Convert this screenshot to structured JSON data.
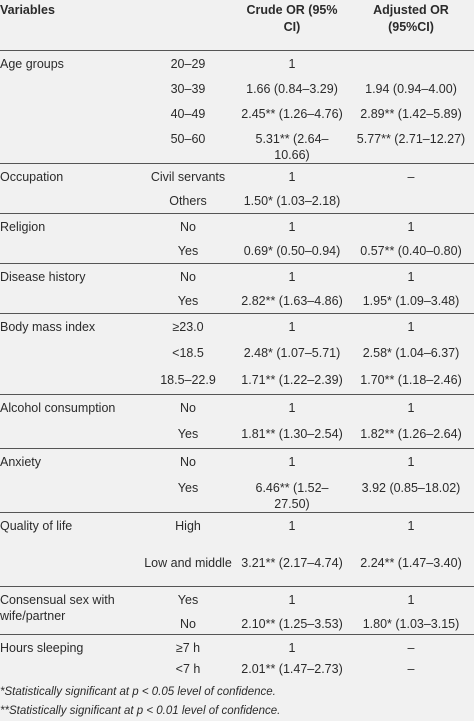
{
  "header": {
    "variables": "Variables",
    "crude": "Crude OR (95% CI)",
    "adjusted": "Adjusted OR (95%CI)"
  },
  "groups": [
    {
      "variable": "Age groups",
      "rows": [
        [
          "20–29",
          "1",
          ""
        ],
        [
          "30–39",
          "1.66 (0.84–3.29)",
          "1.94 (0.94–4.00)"
        ],
        [
          "40–49",
          "2.45** (1.26–4.76)",
          "2.89** (1.42–5.89)"
        ],
        [
          "50–60",
          "5.31** (2.64–10.66)",
          "5.77** (2.71–12.27)"
        ]
      ]
    },
    {
      "variable": "Occupation",
      "rows": [
        [
          "Civil servants",
          "1",
          "–"
        ],
        [
          "Others",
          "1.50* (1.03–2.18)",
          ""
        ]
      ]
    },
    {
      "variable": "Religion",
      "rows": [
        [
          "No",
          "1",
          "1"
        ],
        [
          "Yes",
          "0.69* (0.50–0.94)",
          "0.57** (0.40–0.80)"
        ]
      ]
    },
    {
      "variable": "Disease history",
      "rows": [
        [
          "No",
          "1",
          "1"
        ],
        [
          "Yes",
          "2.82** (1.63–4.86)",
          "1.95* (1.09–3.48)"
        ]
      ]
    },
    {
      "variable": "Body mass index",
      "rows": [
        [
          "≥23.0",
          "1",
          "1"
        ],
        [
          "<18.5",
          "2.48* (1.07–5.71)",
          "2.58* (1.04–6.37)"
        ],
        [
          "18.5–22.9",
          "1.71** (1.22–2.39)",
          "1.70** (1.18–2.46)"
        ]
      ]
    },
    {
      "variable": "Alcohol consumption",
      "rows": [
        [
          "No",
          "1",
          "1"
        ],
        [
          "Yes",
          "1.81** (1.30–2.54)",
          "1.82** (1.26–2.64)"
        ]
      ]
    },
    {
      "variable": "Anxiety",
      "rows": [
        [
          "No",
          "1",
          "1"
        ],
        [
          "Yes",
          "6.46** (1.52–27.50)",
          "3.92 (0.85–18.02)"
        ]
      ]
    },
    {
      "variable": "Quality of life",
      "rows": [
        [
          "High",
          "1",
          "1"
        ],
        [
          "Low and middle",
          "3.21** (2.17–4.74)",
          "2.24** (1.47–3.40)"
        ]
      ]
    },
    {
      "variable": "Consensual sex with wife/partner",
      "rows": [
        [
          "Yes",
          "1",
          "1"
        ],
        [
          "No",
          "2.10** (1.25–3.53)",
          "1.80* (1.03–3.15)"
        ]
      ]
    },
    {
      "variable": "Hours sleeping",
      "rows": [
        [
          "≥7 h",
          "1",
          "–"
        ],
        [
          "<7 h",
          "2.01** (1.47–2.73)",
          "–"
        ]
      ]
    }
  ],
  "footnotes": [
    "*Statistically significant at p < 0.05 level of confidence.",
    "**Statistically significant at p < 0.01 level of confidence."
  ]
}
